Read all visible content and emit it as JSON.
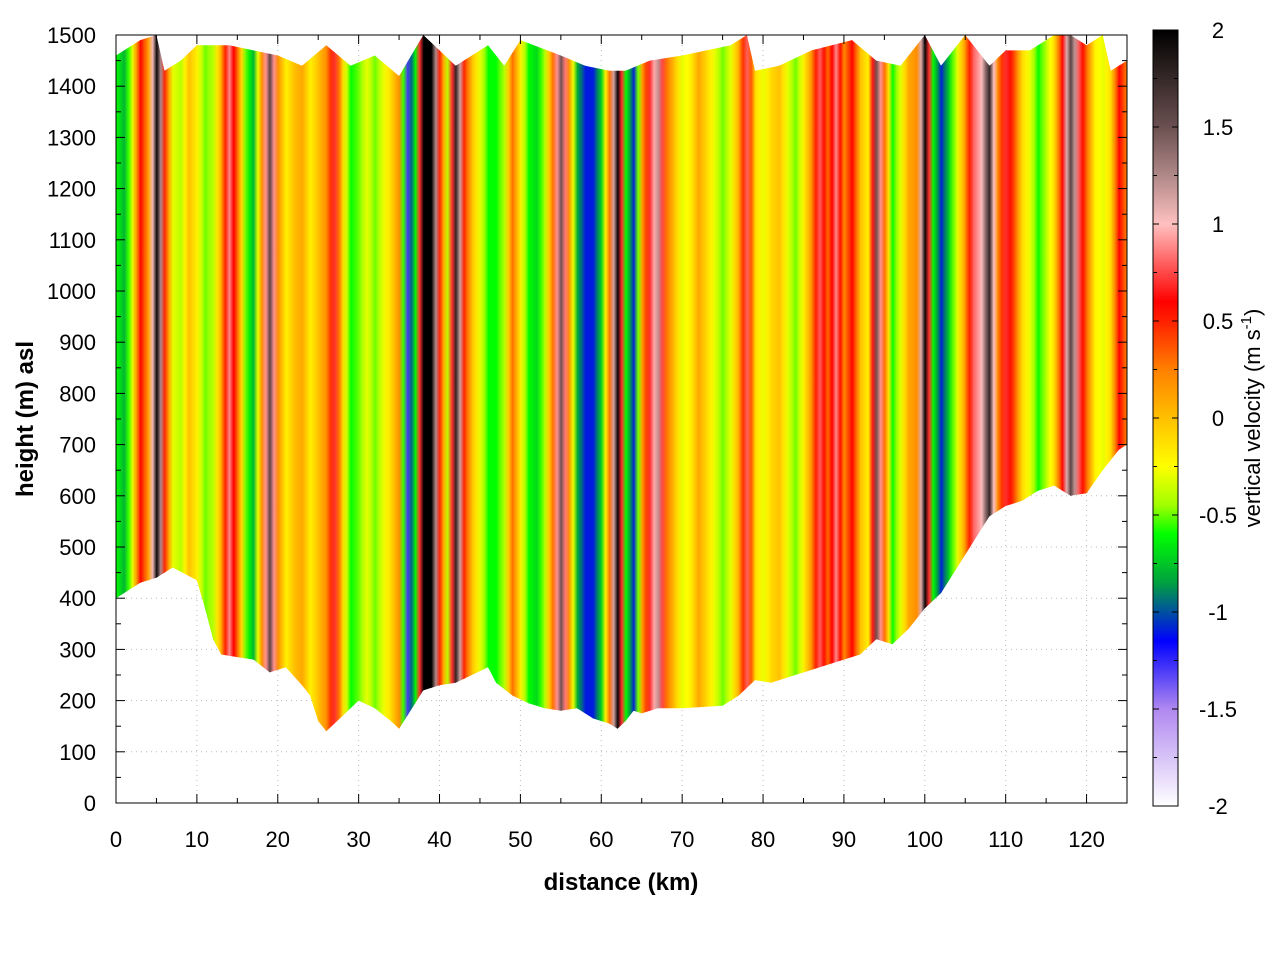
{
  "chart_data": {
    "type": "heatmap",
    "title": "",
    "xlabel": "distance (km)",
    "ylabel": "height (m) asl",
    "colorbar_label": "vertical velocity (m s",
    "colorbar_label_sup": "-1",
    "colorbar_label_end": ")",
    "xlim": [
      0,
      125
    ],
    "ylim": [
      0,
      1500
    ],
    "clim": [
      -2,
      2
    ],
    "grid": true,
    "xticks": [
      "0",
      "10",
      "20",
      "30",
      "40",
      "50",
      "60",
      "70",
      "80",
      "90",
      "100",
      "110",
      "120"
    ],
    "yticks": [
      "0",
      "100",
      "200",
      "300",
      "400",
      "500",
      "600",
      "700",
      "800",
      "900",
      "1000",
      "1100",
      "1200",
      "1300",
      "1400",
      "1500"
    ],
    "cticks": [
      "-2",
      "-1.5",
      "-1",
      "-0.5",
      "0",
      "0.5",
      "1",
      "1.5",
      "2"
    ],
    "colormap": [
      [
        -2.0,
        "#ffffff"
      ],
      [
        -1.5,
        "#b088f0"
      ],
      [
        -1.15,
        "#0000ff"
      ],
      [
        -1.0,
        "#0050a0"
      ],
      [
        -0.85,
        "#00a040"
      ],
      [
        -0.6,
        "#00ff00"
      ],
      [
        -0.45,
        "#a0ff00"
      ],
      [
        -0.25,
        "#ffff00"
      ],
      [
        0.0,
        "#ffc000"
      ],
      [
        0.25,
        "#ff8000"
      ],
      [
        0.5,
        "#ff2000"
      ],
      [
        0.6,
        "#ff0000"
      ],
      [
        0.8,
        "#ff6060"
      ],
      [
        1.0,
        "#ffc0c0"
      ],
      [
        1.25,
        "#b08888"
      ],
      [
        1.5,
        "#6b5050"
      ],
      [
        2.0,
        "#000000"
      ]
    ],
    "column_km_step": 1,
    "column_values": [
      -0.6,
      -0.8,
      -0.3,
      0.6,
      0.1,
      2,
      0.5,
      -0.3,
      -0.4,
      0,
      -0.2,
      -0.5,
      -0.4,
      0.1,
      0.9,
      0.3,
      -0.5,
      -0.8,
      0.2,
      1.6,
      0.2,
      -0.2,
      0,
      0.1,
      -0.2,
      0,
      0.2,
      0.7,
      -0.1,
      -0.6,
      -0.5,
      -0.3,
      -0.5,
      -0.3,
      -0.1,
      0.2,
      -1.3,
      -0.6,
      2,
      2,
      0.5,
      -0.4,
      1.8,
      0.5,
      0,
      -0.3,
      -0.6,
      -0.6,
      -0.4,
      0.3,
      -0.2,
      -0.6,
      -0.7,
      -0.4,
      0.3,
      1.5,
      0.2,
      -0.8,
      -1.1,
      -1.1,
      -0.7,
      0.3,
      2,
      -0.6,
      -1.1,
      0.1,
      0.7,
      1.2,
      0.3,
      0,
      -0.3,
      -0.2,
      0.1,
      -0.1,
      -0.3,
      -0.5,
      -0.3,
      0.1,
      0.8,
      -0.1,
      -0.3,
      -0.1,
      0,
      -0.3,
      -0.5,
      -0.2,
      0.2,
      0.8,
      0.3,
      0.9,
      0.2,
      0.6,
      0,
      -0.2,
      1.5,
      0.3,
      -0.6,
      -0.3,
      0.1,
      0.2,
      2,
      -0.6,
      -1.1,
      -0.7,
      -0.3,
      0.2,
      0.8,
      1.0,
      1.8,
      0.2,
      0.7,
      0.4,
      -0.1,
      -0.3,
      -0.6,
      -0.4,
      -0.1,
      0.6,
      1.6,
      0.8,
      0.3,
      -0.2,
      -0.3,
      -0.1,
      0.6,
      0.2
    ],
    "terrain_bottom": [
      [
        0,
        400
      ],
      [
        3,
        430
      ],
      [
        5,
        440
      ],
      [
        7,
        460
      ],
      [
        10,
        435
      ],
      [
        11,
        380
      ],
      [
        12,
        320
      ],
      [
        13,
        290
      ],
      [
        15,
        285
      ],
      [
        17,
        280
      ],
      [
        19,
        255
      ],
      [
        21,
        265
      ],
      [
        23,
        230
      ],
      [
        24,
        210
      ],
      [
        25,
        160
      ],
      [
        26,
        140
      ],
      [
        28,
        170
      ],
      [
        30,
        200
      ],
      [
        32,
        185
      ],
      [
        34,
        160
      ],
      [
        35,
        145
      ],
      [
        36,
        170
      ],
      [
        38,
        220
      ],
      [
        40,
        230
      ],
      [
        42,
        235
      ],
      [
        44,
        250
      ],
      [
        46,
        265
      ],
      [
        47,
        235
      ],
      [
        49,
        210
      ],
      [
        51,
        195
      ],
      [
        53,
        185
      ],
      [
        55,
        180
      ],
      [
        57,
        185
      ],
      [
        59,
        165
      ],
      [
        61,
        155
      ],
      [
        62,
        145
      ],
      [
        63,
        160
      ],
      [
        64,
        180
      ],
      [
        65,
        175
      ],
      [
        67,
        185
      ],
      [
        70,
        185
      ],
      [
        75,
        190
      ],
      [
        77,
        210
      ],
      [
        79,
        240
      ],
      [
        81,
        235
      ],
      [
        84,
        250
      ],
      [
        88,
        270
      ],
      [
        92,
        290
      ],
      [
        94,
        320
      ],
      [
        96,
        310
      ],
      [
        98,
        340
      ],
      [
        100,
        380
      ],
      [
        102,
        410
      ],
      [
        104,
        460
      ],
      [
        106,
        510
      ],
      [
        108,
        560
      ],
      [
        110,
        580
      ],
      [
        112,
        590
      ],
      [
        114,
        610
      ],
      [
        116,
        620
      ],
      [
        118,
        600
      ],
      [
        120,
        605
      ],
      [
        122,
        650
      ],
      [
        124,
        690
      ],
      [
        125,
        700
      ]
    ],
    "data_top": [
      [
        0,
        1460
      ],
      [
        3,
        1490
      ],
      [
        5,
        1500
      ],
      [
        6,
        1430
      ],
      [
        8,
        1450
      ],
      [
        10,
        1480
      ],
      [
        14,
        1480
      ],
      [
        17,
        1470
      ],
      [
        20,
        1460
      ],
      [
        23,
        1440
      ],
      [
        26,
        1480
      ],
      [
        29,
        1440
      ],
      [
        32,
        1460
      ],
      [
        35,
        1420
      ],
      [
        38,
        1500
      ],
      [
        42,
        1440
      ],
      [
        46,
        1480
      ],
      [
        48,
        1440
      ],
      [
        50,
        1490
      ],
      [
        55,
        1460
      ],
      [
        58,
        1440
      ],
      [
        61,
        1430
      ],
      [
        63,
        1430
      ],
      [
        66,
        1450
      ],
      [
        70,
        1460
      ],
      [
        76,
        1480
      ],
      [
        78,
        1500
      ],
      [
        79,
        1430
      ],
      [
        82,
        1440
      ],
      [
        86,
        1470
      ],
      [
        91,
        1490
      ],
      [
        94,
        1450
      ],
      [
        97,
        1440
      ],
      [
        100,
        1500
      ],
      [
        102,
        1440
      ],
      [
        105,
        1500
      ],
      [
        108,
        1440
      ],
      [
        110,
        1470
      ],
      [
        113,
        1470
      ],
      [
        116,
        1500
      ],
      [
        118,
        1500
      ],
      [
        120,
        1480
      ],
      [
        122,
        1500
      ],
      [
        123,
        1430
      ],
      [
        125,
        1450
      ]
    ]
  }
}
